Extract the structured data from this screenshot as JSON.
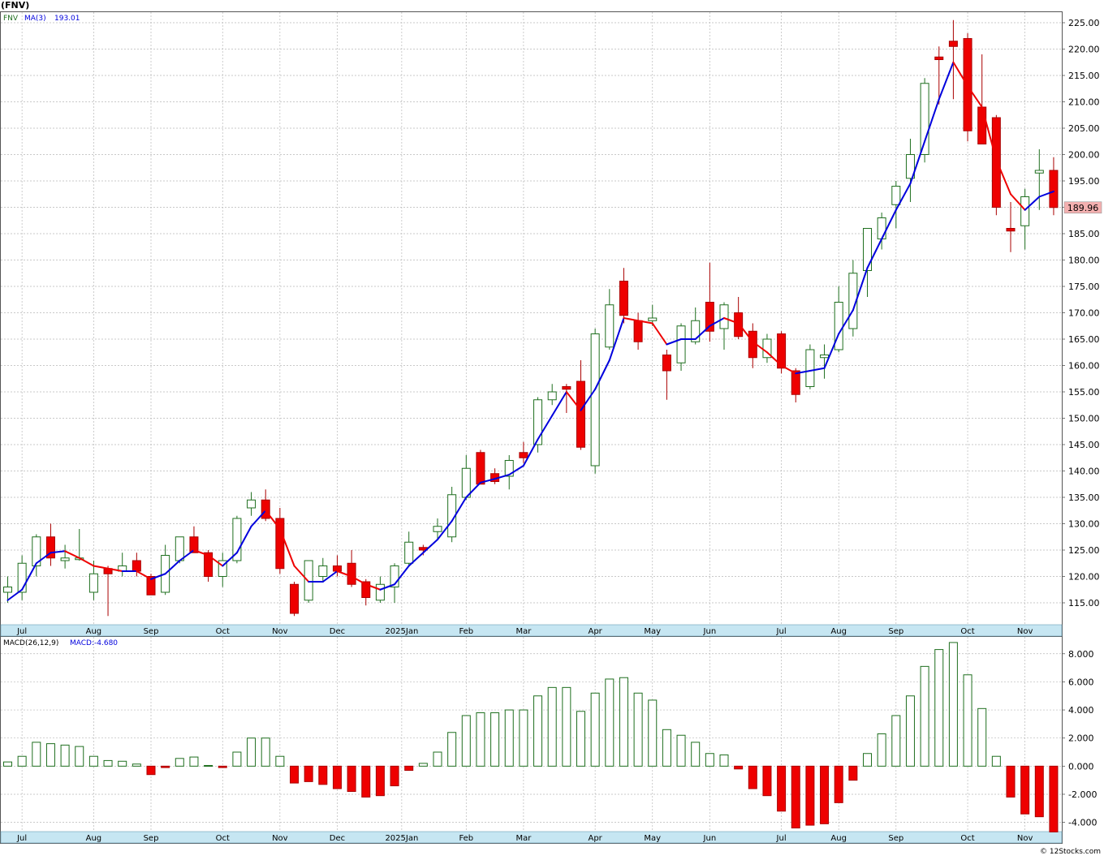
{
  "chart_title": "(FNV)",
  "footer_credit": "© 12Stocks.com",
  "colors": {
    "up_body": "#ffffff",
    "up_border": "#1f6f1f",
    "down_body": "#ee0000",
    "down_border": "#aa0000",
    "ma_up": "#0000dd",
    "ma_down": "#ee0000",
    "grid": "#b8b8b8",
    "axis_strip": "#c6e6f2",
    "price_tag_bg": "#f4b0b0"
  },
  "chart_data": [
    {
      "type": "candlestick",
      "legend": {
        "symbol": "FNV",
        "ma_label": "MA(3)",
        "ma_value": "193.01"
      },
      "ylim": [
        111,
        227
      ],
      "yticks": [
        115,
        120,
        125,
        130,
        135,
        140,
        145,
        150,
        155,
        160,
        165,
        170,
        175,
        180,
        185,
        190,
        195,
        200,
        205,
        210,
        215,
        220,
        225
      ],
      "ytick_labels": [
        "115.00",
        "120.00",
        "125.00",
        "130.00",
        "135.00",
        "140.00",
        "145.00",
        "150.00",
        "155.00",
        "160.00",
        "165.00",
        "170.00",
        "175.00",
        "180.00",
        "185.00",
        "190.00",
        "195.00",
        "200.00",
        "205.00",
        "210.00",
        "215.00",
        "220.00",
        "225.00"
      ],
      "last_price": "189.96",
      "x_axis_labels": [
        {
          "label": "Jul",
          "index": 1
        },
        {
          "label": "Aug",
          "index": 6
        },
        {
          "label": "Sep",
          "index": 10
        },
        {
          "label": "Oct",
          "index": 15
        },
        {
          "label": "Nov",
          "index": 19
        },
        {
          "label": "Dec",
          "index": 23
        },
        {
          "label": "2025Jan",
          "index": 27.5
        },
        {
          "label": "Feb",
          "index": 32
        },
        {
          "label": "Mar",
          "index": 36
        },
        {
          "label": "Apr",
          "index": 41
        },
        {
          "label": "May",
          "index": 45
        },
        {
          "label": "Jun",
          "index": 49
        },
        {
          "label": "Jul",
          "index": 54
        },
        {
          "label": "Aug",
          "index": 58
        },
        {
          "label": "Sep",
          "index": 62
        },
        {
          "label": "Oct",
          "index": 67
        },
        {
          "label": "Nov",
          "index": 71
        }
      ],
      "candles": [
        {
          "o": 117,
          "h": 120,
          "l": 115,
          "c": 118
        },
        {
          "o": 117,
          "h": 124,
          "l": 115.5,
          "c": 122.5
        },
        {
          "o": 122,
          "h": 128,
          "l": 120,
          "c": 127.5
        },
        {
          "o": 127.5,
          "h": 130,
          "l": 122,
          "c": 123.5
        },
        {
          "o": 123,
          "h": 126,
          "l": 121.5,
          "c": 123.5
        },
        {
          "o": 123.5,
          "h": 129,
          "l": 123,
          "c": 123.5
        },
        {
          "o": 117,
          "h": 123,
          "l": 115.5,
          "c": 120.5
        },
        {
          "o": 121.5,
          "h": 122,
          "l": 112.5,
          "c": 120.5
        },
        {
          "o": 121,
          "h": 124.5,
          "l": 120,
          "c": 122
        },
        {
          "o": 123,
          "h": 124.5,
          "l": 120,
          "c": 121
        },
        {
          "o": 120,
          "h": 120.5,
          "l": 116.5,
          "c": 116.5
        },
        {
          "o": 117,
          "h": 126,
          "l": 116.5,
          "c": 124
        },
        {
          "o": 123,
          "h": 127.5,
          "l": 122.5,
          "c": 127.5
        },
        {
          "o": 127.5,
          "h": 129.5,
          "l": 124.5,
          "c": 124.5
        },
        {
          "o": 124.5,
          "h": 125,
          "l": 119,
          "c": 120
        },
        {
          "o": 120,
          "h": 124.5,
          "l": 118,
          "c": 123
        },
        {
          "o": 123,
          "h": 131.5,
          "l": 122.5,
          "c": 131
        },
        {
          "o": 133,
          "h": 136,
          "l": 131.5,
          "c": 134.5
        },
        {
          "o": 134.5,
          "h": 136.5,
          "l": 130.5,
          "c": 131
        },
        {
          "o": 131,
          "h": 133,
          "l": 120.5,
          "c": 121.5
        },
        {
          "o": 118.5,
          "h": 119,
          "l": 112.5,
          "c": 113
        },
        {
          "o": 115.5,
          "h": 123,
          "l": 115,
          "c": 123
        },
        {
          "o": 120,
          "h": 123.5,
          "l": 119,
          "c": 122
        },
        {
          "o": 122,
          "h": 124,
          "l": 120,
          "c": 121
        },
        {
          "o": 122.5,
          "h": 125,
          "l": 118,
          "c": 118.5
        },
        {
          "o": 119,
          "h": 119.5,
          "l": 114.5,
          "c": 116
        },
        {
          "o": 115.5,
          "h": 120,
          "l": 115,
          "c": 118.5
        },
        {
          "o": 118,
          "h": 122.5,
          "l": 115,
          "c": 122
        },
        {
          "o": 122.5,
          "h": 128.5,
          "l": 122,
          "c": 126.5
        },
        {
          "o": 125.5,
          "h": 126,
          "l": 124,
          "c": 125
        },
        {
          "o": 128.5,
          "h": 131,
          "l": 127,
          "c": 129.5
        },
        {
          "o": 127.5,
          "h": 137,
          "l": 126.5,
          "c": 135.5
        },
        {
          "o": 135,
          "h": 143,
          "l": 134.5,
          "c": 140.5
        },
        {
          "o": 143.5,
          "h": 144,
          "l": 137.5,
          "c": 137.5
        },
        {
          "o": 139.5,
          "h": 140.5,
          "l": 137.5,
          "c": 138
        },
        {
          "o": 139,
          "h": 143,
          "l": 136.5,
          "c": 142
        },
        {
          "o": 143.5,
          "h": 145.5,
          "l": 141.5,
          "c": 142.5
        },
        {
          "o": 145,
          "h": 154,
          "l": 143.5,
          "c": 153.5
        },
        {
          "o": 153.5,
          "h": 156.5,
          "l": 152.5,
          "c": 155
        },
        {
          "o": 156,
          "h": 156.5,
          "l": 151,
          "c": 155.5
        },
        {
          "o": 157,
          "h": 161,
          "l": 144,
          "c": 144.5
        },
        {
          "o": 141,
          "h": 167,
          "l": 139.5,
          "c": 166
        },
        {
          "o": 163.5,
          "h": 174.5,
          "l": 163,
          "c": 171.5
        },
        {
          "o": 176,
          "h": 178.5,
          "l": 168,
          "c": 169.5
        },
        {
          "o": 168.5,
          "h": 170,
          "l": 163,
          "c": 164.5
        },
        {
          "o": 168.5,
          "h": 171.5,
          "l": 167.5,
          "c": 169
        },
        {
          "o": 162,
          "h": 163,
          "l": 153.5,
          "c": 159
        },
        {
          "o": 160.5,
          "h": 168,
          "l": 159,
          "c": 167.5
        },
        {
          "o": 164.5,
          "h": 171,
          "l": 164,
          "c": 168.5
        },
        {
          "o": 172,
          "h": 179.5,
          "l": 164.5,
          "c": 166.5
        },
        {
          "o": 167,
          "h": 172,
          "l": 163,
          "c": 171.5
        },
        {
          "o": 170,
          "h": 173,
          "l": 165,
          "c": 165.5
        },
        {
          "o": 166.5,
          "h": 168,
          "l": 159.5,
          "c": 161.5
        },
        {
          "o": 161.5,
          "h": 166,
          "l": 160.5,
          "c": 165
        },
        {
          "o": 166,
          "h": 166.5,
          "l": 158.5,
          "c": 159.5
        },
        {
          "o": 159,
          "h": 159.5,
          "l": 153,
          "c": 154.5
        },
        {
          "o": 156,
          "h": 164,
          "l": 155.5,
          "c": 163
        },
        {
          "o": 161.5,
          "h": 164,
          "l": 157.5,
          "c": 162
        },
        {
          "o": 163,
          "h": 175,
          "l": 162.5,
          "c": 172
        },
        {
          "o": 167,
          "h": 180,
          "l": 165.5,
          "c": 177.5
        },
        {
          "o": 178,
          "h": 186,
          "l": 173,
          "c": 186
        },
        {
          "o": 184,
          "h": 189,
          "l": 182,
          "c": 188
        },
        {
          "o": 190.5,
          "h": 195,
          "l": 186,
          "c": 194
        },
        {
          "o": 195.5,
          "h": 203,
          "l": 191,
          "c": 200
        },
        {
          "o": 200,
          "h": 214.5,
          "l": 198.5,
          "c": 213.5
        },
        {
          "o": 218.5,
          "h": 220.5,
          "l": 209.5,
          "c": 218
        },
        {
          "o": 221.5,
          "h": 225.5,
          "l": 210.5,
          "c": 220.5
        },
        {
          "o": 222,
          "h": 223,
          "l": 202.5,
          "c": 204.5
        },
        {
          "o": 209,
          "h": 219,
          "l": 202,
          "c": 202
        },
        {
          "o": 207,
          "h": 207.5,
          "l": 188.5,
          "c": 190
        },
        {
          "o": 186,
          "h": 191,
          "l": 181.5,
          "c": 185.5
        },
        {
          "o": 186.5,
          "h": 193.5,
          "l": 182,
          "c": 192
        },
        {
          "o": 196.5,
          "h": 201,
          "l": 189.5,
          "c": 197
        },
        {
          "o": 197,
          "h": 199.5,
          "l": 188.5,
          "c": 189.96
        }
      ],
      "ma3": [
        115.5,
        117.5,
        122.5,
        124.5,
        124.8,
        123.5,
        122,
        121.5,
        121,
        121,
        119.5,
        120.5,
        123,
        125,
        124,
        122,
        124.5,
        129.5,
        132.5,
        129,
        122,
        119,
        119,
        121,
        120,
        118.5,
        117.5,
        118.5,
        122,
        124.5,
        127,
        130.5,
        135,
        137.8,
        138.5,
        139.3,
        141,
        146,
        150.5,
        155,
        151.5,
        155.5,
        161,
        169,
        168.5,
        168,
        164,
        165,
        165,
        167.5,
        169,
        168,
        164.5,
        162.5,
        160,
        158.5,
        159,
        159.5,
        166,
        170.5,
        178.5,
        184,
        189.5,
        194.5,
        202.5,
        210.5,
        217.5,
        213,
        209,
        199,
        192.5,
        189.5,
        192,
        193.01
      ]
    },
    {
      "type": "bar",
      "legend": {
        "label": "MACD(26,12,9)",
        "value_label": "MACD:-4.680"
      },
      "ylim": [
        -4.6,
        9.2
      ],
      "yticks": [
        -4,
        -2,
        0,
        2,
        4,
        6,
        8
      ],
      "ytick_labels": [
        "-4.000",
        "-2.000",
        "0.000",
        "2.000",
        "4.000",
        "6.000",
        "8.000"
      ],
      "values": [
        0.3,
        0.7,
        1.7,
        1.6,
        1.5,
        1.4,
        0.7,
        0.4,
        0.35,
        0.15,
        -0.6,
        -0.1,
        0.55,
        0.65,
        0.05,
        -0.1,
        1.0,
        2.0,
        2.0,
        0.7,
        -1.2,
        -1.1,
        -1.3,
        -1.6,
        -1.8,
        -2.2,
        -2.1,
        -1.4,
        -0.3,
        0.2,
        1.0,
        2.4,
        3.6,
        3.8,
        3.8,
        4.0,
        4.0,
        5.0,
        5.6,
        5.6,
        3.9,
        5.2,
        6.2,
        6.3,
        5.2,
        4.7,
        2.6,
        2.2,
        1.7,
        0.9,
        0.8,
        -0.2,
        -1.6,
        -2.1,
        -3.2,
        -4.4,
        -4.2,
        -4.1,
        -2.6,
        -1.0,
        0.9,
        2.3,
        3.6,
        5.0,
        7.1,
        8.3,
        8.8,
        6.5,
        4.1,
        0.7,
        -2.2,
        -3.4,
        -3.6,
        -4.68
      ]
    }
  ]
}
